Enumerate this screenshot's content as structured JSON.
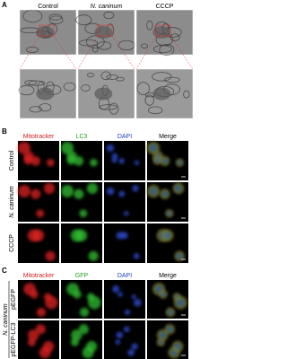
{
  "panel_a": {
    "label": "A",
    "columns": [
      "Control",
      "N. caninum",
      "CCCP"
    ]
  },
  "panel_b": {
    "label": "B",
    "columns": [
      "Mitotracker",
      "LC3",
      "DAPI",
      "Merge"
    ],
    "rows": [
      "Control",
      "N. caninum",
      "CCCP"
    ]
  },
  "panel_c": {
    "label": "C",
    "columns": [
      "Mitotracker",
      "GFP",
      "DAPI",
      "Merge"
    ],
    "rows": [
      "pEGFP",
      "pEGFP-LC3"
    ],
    "group": "N. caninum"
  }
}
